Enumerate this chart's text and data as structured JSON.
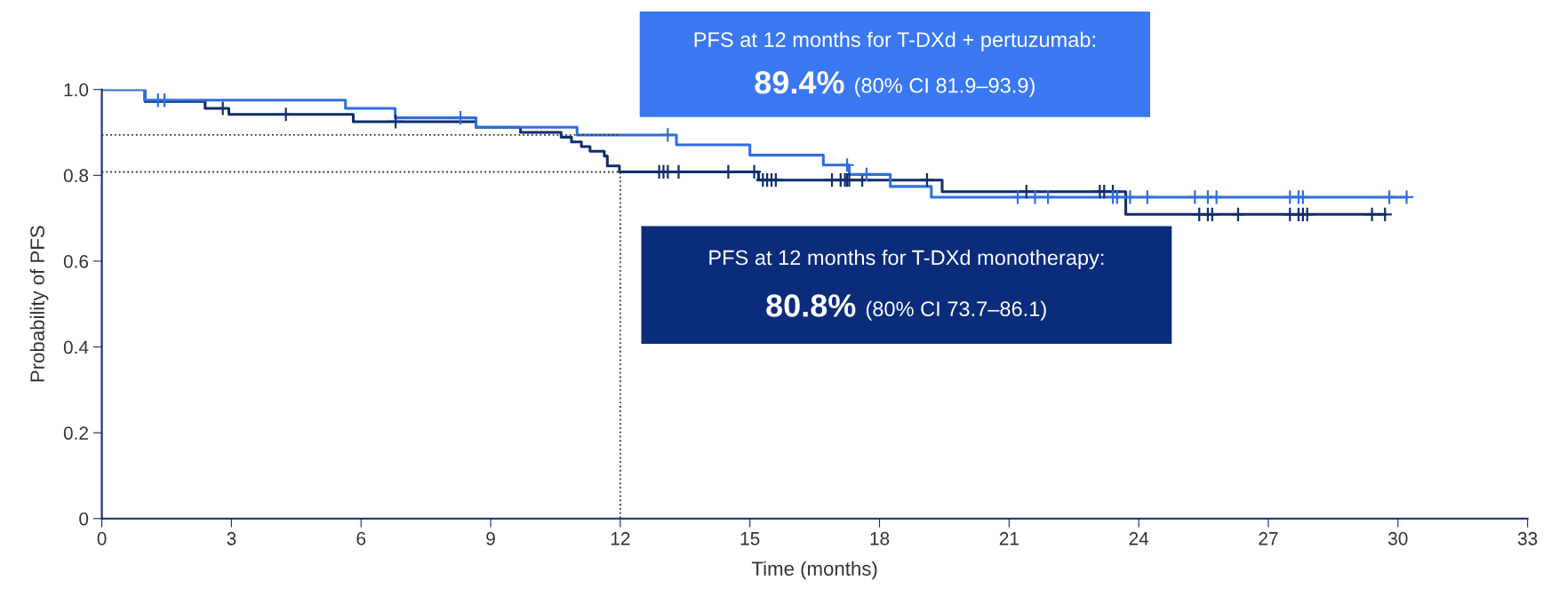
{
  "chart_data": {
    "type": "step",
    "xlabel": "Time (months)",
    "ylabel": "Probability of PFS",
    "xlim": [
      0,
      33
    ],
    "xticks": [
      0,
      3,
      6,
      9,
      12,
      15,
      18,
      21,
      24,
      27,
      30,
      33
    ],
    "ylim": [
      0,
      1.0
    ],
    "yticks": [
      0,
      0.2,
      0.4,
      0.6,
      0.8,
      {
        "value": 1.0,
        "label": "1.0"
      }
    ],
    "grid": false,
    "legend": false,
    "series": [
      {
        "color": "#0f2d6e",
        "x": [
          0,
          1.0,
          2.39,
          2.94,
          5.82,
          8.66,
          9.69,
          10.63,
          10.87,
          11.1,
          11.3,
          11.63,
          11.7,
          11.98,
          15.2,
          19.45,
          23.7,
          29.7
        ],
        "values": [
          1.0,
          0.972,
          0.956,
          0.942,
          0.925,
          0.912,
          0.9,
          0.889,
          0.878,
          0.867,
          0.856,
          0.845,
          0.822,
          0.808,
          0.789,
          0.762,
          0.709,
          0.709
        ]
      },
      {
        "color": "#2f6fdc",
        "x": [
          0,
          0.99,
          5.64,
          6.79,
          8.66,
          11.0,
          13.3,
          15.0,
          16.7,
          17.3,
          18.25,
          19.2,
          30.2
        ],
        "values": [
          1.0,
          0.975,
          0.956,
          0.934,
          0.912,
          0.894,
          0.871,
          0.847,
          0.824,
          0.802,
          0.774,
          0.749,
          0.749
        ]
      },
      {
        "type": "scatter",
        "marker": "cross",
        "color": "#0f2d6e",
        "x": [
          2.8,
          4.26,
          6.8,
          12.9,
          13.0,
          13.1,
          13.35,
          14.5,
          15.1,
          15.3,
          15.4,
          15.5,
          15.6,
          16.9,
          17.1,
          17.2,
          17.25,
          17.3,
          17.6,
          19.1,
          21.4,
          23.1,
          23.2,
          23.4,
          25.4,
          25.6,
          25.7,
          26.3,
          27.5,
          27.7,
          27.8,
          27.9,
          29.4,
          29.7
        ],
        "values": [
          0.956,
          0.942,
          0.925,
          0.808,
          0.808,
          0.808,
          0.808,
          0.808,
          0.808,
          0.789,
          0.789,
          0.789,
          0.789,
          0.789,
          0.789,
          0.789,
          0.789,
          0.789,
          0.789,
          0.789,
          0.762,
          0.762,
          0.762,
          0.762,
          0.709,
          0.709,
          0.709,
          0.709,
          0.709,
          0.709,
          0.709,
          0.709,
          0.709,
          0.709
        ]
      },
      {
        "type": "scatter",
        "marker": "cross",
        "color": "#2f6fdc",
        "x": [
          1.3,
          1.45,
          8.3,
          13.1,
          17.25,
          17.7,
          21.2,
          21.6,
          21.9,
          23.4,
          23.5,
          23.8,
          24.2,
          25.3,
          25.6,
          25.8,
          27.5,
          27.7,
          27.8,
          29.8,
          30.2
        ],
        "values": [
          0.975,
          0.975,
          0.934,
          0.894,
          0.824,
          0.802,
          0.749,
          0.749,
          0.749,
          0.749,
          0.749,
          0.749,
          0.749,
          0.749,
          0.749,
          0.749,
          0.749,
          0.749,
          0.749,
          0.749,
          0.749
        ]
      },
      {
        "type": "line",
        "line_style": "dotted",
        "color": "#333333",
        "x": [
          0,
          12
        ],
        "values": [
          0.894,
          0.894
        ]
      },
      {
        "type": "line",
        "line_style": "dotted",
        "color": "#333333",
        "x": [
          0,
          12,
          12
        ],
        "values": [
          0.808,
          0.808,
          0
        ]
      }
    ],
    "annotations": [
      "PFS at 12 months for T-DXd + pertuzumab:",
      "89.4% (80% CI 81.9–93.9)",
      "PFS at 12 months for T-DXd monotherapy:",
      "80.8% (80% CI 73.7–86.1)"
    ]
  }
}
